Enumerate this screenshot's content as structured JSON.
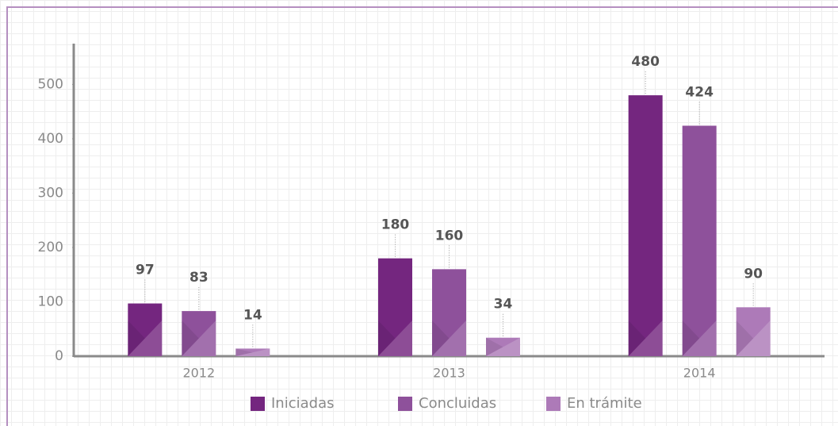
{
  "chart_data": {
    "type": "bar",
    "categories": [
      "2012",
      "2013",
      "2014"
    ],
    "series": [
      {
        "name": "Iniciadas",
        "color": "#74267f",
        "values": [
          97,
          180,
          480
        ]
      },
      {
        "name": "Concluidas",
        "color": "#8e519b",
        "values": [
          83,
          160,
          424
        ]
      },
      {
        "name": "En trámite",
        "color": "#ad7ab8",
        "values": [
          14,
          34,
          90
        ]
      }
    ],
    "ylim": [
      0,
      575
    ],
    "yticks": [
      0,
      100,
      200,
      300,
      400,
      500
    ],
    "legend": "bottom"
  }
}
